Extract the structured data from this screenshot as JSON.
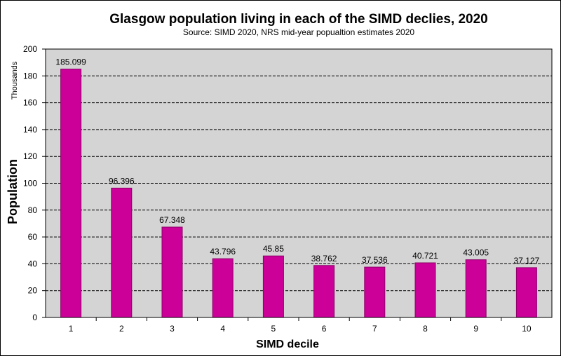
{
  "chart_data": {
    "type": "bar",
    "title": "Glasgow population living in each of the SIMD declies, 2020",
    "subtitle": "Source: SIMD 2020, NRS mid-year popualtion estimates 2020",
    "xlabel": "SIMD decile",
    "ylabel": "Population",
    "yunit": "Thousands",
    "categories": [
      "1",
      "2",
      "3",
      "4",
      "5",
      "6",
      "7",
      "8",
      "9",
      "10"
    ],
    "values": [
      185.099,
      96.396,
      67.348,
      43.796,
      45.85,
      38.762,
      37.536,
      40.721,
      43.005,
      37.127
    ],
    "data_labels": [
      "185.099",
      "96.396",
      "67.348",
      "43.796",
      "45.85",
      "38.762",
      "37.536",
      "40.721",
      "43.005",
      "37.127"
    ],
    "ylim": [
      0,
      200
    ],
    "yticks": [
      "0",
      "20",
      "40",
      "60",
      "80",
      "100",
      "120",
      "140",
      "160",
      "180",
      "200"
    ],
    "grid": true,
    "colors": {
      "bar_fill": "#cc0099",
      "bar_stroke": "#8b0066",
      "plot_background": "#d4d4d4",
      "gridline": "#000000"
    }
  }
}
